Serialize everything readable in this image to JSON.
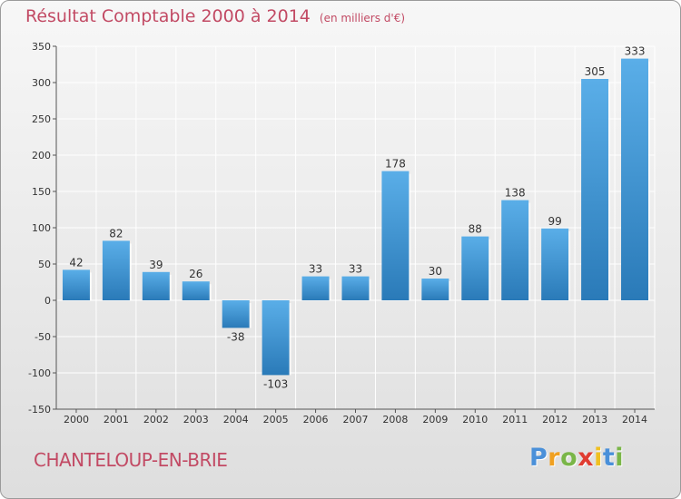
{
  "title": "Résultat Comptable 2000 à 2014",
  "subtitle": "(en milliers d'€)",
  "town": "CHANTELOUP-EN-BRIE",
  "logo": {
    "letters": [
      "P",
      "r",
      "o",
      "x",
      "i",
      "t",
      "i"
    ],
    "colors": [
      "#4a90d9",
      "#f0a020",
      "#7ab648",
      "#e03c31",
      "#f0c020",
      "#4a90d9",
      "#7ab648"
    ]
  },
  "colors": {
    "bar_light": "#5aaee8",
    "bar_dark": "#2a7ab8",
    "text": "#c24a64",
    "grid": "#ffffff"
  },
  "chart_data": {
    "type": "bar",
    "title": "Résultat Comptable 2000 à 2014",
    "subtitle": "(en milliers d'€)",
    "xlabel": "",
    "ylabel": "",
    "categories": [
      "2000",
      "2001",
      "2002",
      "2003",
      "2004",
      "2005",
      "2006",
      "2007",
      "2008",
      "2009",
      "2010",
      "2011",
      "2012",
      "2013",
      "2014"
    ],
    "values": [
      42,
      82,
      39,
      26,
      -38,
      -103,
      33,
      33,
      178,
      30,
      88,
      138,
      99,
      305,
      333
    ],
    "value_labels": [
      "42",
      "82",
      "39",
      "26",
      "-38",
      "-103",
      "33",
      "33",
      "178",
      "30",
      "88",
      "138",
      "99",
      "305",
      "333"
    ],
    "ylim": [
      -150,
      350
    ],
    "yticks": [
      -150,
      -100,
      -50,
      0,
      50,
      100,
      150,
      200,
      250,
      300,
      350
    ],
    "ytick_labels": [
      "-150",
      "-100",
      "-50",
      "0",
      "50",
      "100",
      "150",
      "200",
      "250",
      "300",
      "350"
    ],
    "grid": true
  }
}
